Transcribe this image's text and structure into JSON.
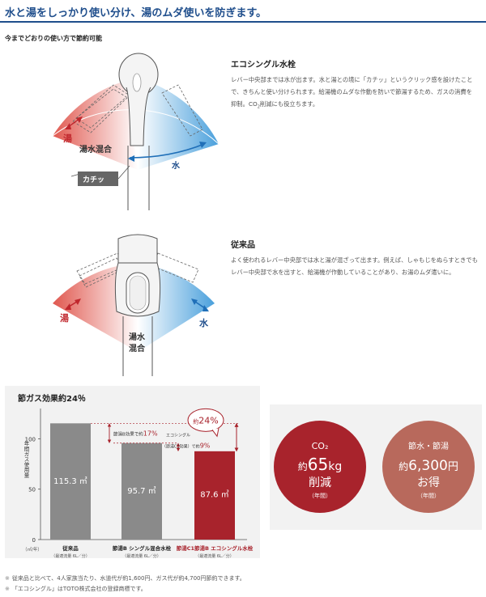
{
  "header": {
    "title": "水と湯をしっかり使い分け、湯のムダ使いを防ぎます。"
  },
  "subtitle": "今までどおりの使い方で節約可能",
  "eco": {
    "title": "エコシングル水栓",
    "body": "レバー中央部までは水が出ます。水と湯との境に「カチッ」というクリック感を設けたことで、きちんと使い分けられます。給湯機のムダな作動を防いで節湯するため、ガスの消費を抑制。CO",
    "body_sub": "2",
    "body_end": "削減にも役立ちます。",
    "label_hot": "湯",
    "label_mix": "湯水混合",
    "label_cold": "水",
    "label_click": "カチッ"
  },
  "conv": {
    "title": "従来品",
    "body": "よく使われるレバー中央部では水と湯が混ざって出ます。例えば、しゃもじをぬらすときでもレバー中央部で水を出すと、給湯機が作動していることがあり、お湯のムダ遣いに。",
    "label_hot": "湯",
    "label_mix_1": "湯水",
    "label_mix_2": "混合",
    "label_cold": "水"
  },
  "chart_data": {
    "type": "bar",
    "title": "節ガス効果約24％",
    "ylabel": "年間ガス使用量",
    "yunit": "（㎥/年）",
    "ylim": [
      0,
      130
    ],
    "yticks": [
      0,
      50,
      100
    ],
    "categories": [
      "従来品",
      "節湯B シングル混合水栓",
      "節湯C1節湯B エコシングル水栓"
    ],
    "category_notes": [
      "（最適流量 6L／分）",
      "（最適流量 6L／分）",
      "（最適流量 6L／分）"
    ],
    "values": [
      115.3,
      95.7,
      87.6
    ],
    "value_labels": [
      "115.3 ㎥",
      "95.7 ㎥",
      "87.6 ㎥"
    ],
    "colors": [
      "#8a8a8a",
      "#8a8a8a",
      "#a8232c"
    ],
    "annotations": {
      "b_label": "節湯B効果で",
      "b_prefix": "約",
      "b_value": "17",
      "b_suffix": "%",
      "c_label_1": "エコシングル",
      "c_label_2": "（節湯C1効果）で",
      "c_prefix": "約",
      "c_value": "9",
      "c_suffix": "%",
      "total_prefix": "約",
      "total_value": "24",
      "total_suffix": "%"
    }
  },
  "circles": {
    "co2": {
      "line1": "CO₂",
      "line2_prefix": "約",
      "line2_value": "65",
      "line2_unit": "kg",
      "line3": "削減",
      "line4": "（年間）",
      "color": "#a8232c"
    },
    "save": {
      "line1": "節水・節湯",
      "line2_prefix": "約",
      "line2_value": "6,300",
      "line2_unit": "円",
      "line3": "お得",
      "line4": "（年間）",
      "color": "#b8695c"
    }
  },
  "footnotes": [
    {
      "mark": "※",
      "text": "従来品と比べて、4人家族当たり、水道代が約1,600円、ガス代が約4,700円節約できます。"
    },
    {
      "mark": "※",
      "text": "「エコシングル」はTOTO株式会社の登録商標です。"
    }
  ]
}
